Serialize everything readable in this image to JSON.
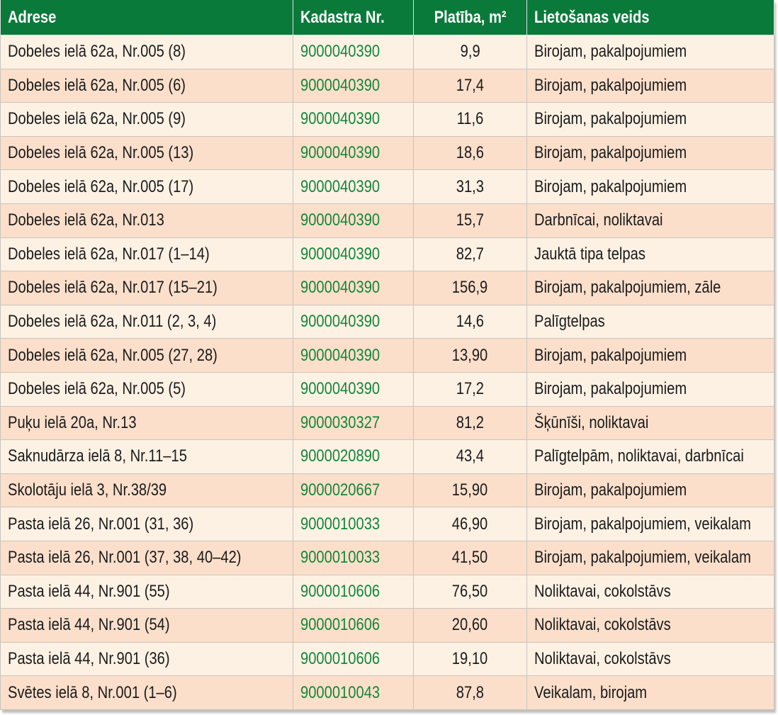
{
  "table": {
    "columns": [
      "Adrese",
      "Kadastra Nr.",
      "Platība, m²",
      "Lietošanas veids"
    ],
    "rows": [
      [
        "Dobeles ielā 62a, Nr.005 (8)",
        "9000040390",
        "9,9",
        "Birojam, pakalpojumiem"
      ],
      [
        "Dobeles ielā 62a, Nr.005 (6)",
        "9000040390",
        "17,4",
        "Birojam, pakalpojumiem"
      ],
      [
        "Dobeles ielā 62a, Nr.005 (9)",
        "9000040390",
        "11,6",
        "Birojam, pakalpojumiem"
      ],
      [
        "Dobeles ielā 62a, Nr.005 (13)",
        "9000040390",
        "18,6",
        "Birojam, pakalpojumiem"
      ],
      [
        "Dobeles ielā 62a, Nr.005 (17)",
        "9000040390",
        "31,3",
        "Birojam, pakalpojumiem"
      ],
      [
        "Dobeles ielā 62a, Nr.013",
        "9000040390",
        "15,7",
        "Darbnīcai, noliktavai"
      ],
      [
        "Dobeles ielā 62a, Nr.017 (1–14)",
        "9000040390",
        "82,7",
        "Jauktā tipa telpas"
      ],
      [
        "Dobeles ielā 62a, Nr.017 (15–21)",
        "9000040390",
        "156,9",
        "Birojam, pakalpojumiem, zāle"
      ],
      [
        "Dobeles ielā 62a, Nr.011 (2, 3, 4)",
        "9000040390",
        "14,6",
        "Palīgtelpas"
      ],
      [
        "Dobeles ielā 62a, Nr.005 (27, 28)",
        "9000040390",
        "13,90",
        "Birojam, pakalpojumiem"
      ],
      [
        "Dobeles ielā 62a, Nr.005 (5)",
        "9000040390",
        "17,2",
        "Birojam, pakalpojumiem"
      ],
      [
        "Puķu ielā 20a, Nr.13",
        "9000030327",
        "81,2",
        "Šķūnīši, noliktavai"
      ],
      [
        "Saknudārza ielā 8, Nr.11–15",
        "9000020890",
        "43,4",
        "Palīgtelpām, noliktavai, darbnīcai"
      ],
      [
        "Skolotāju ielā 3, Nr.38/39",
        "9000020667",
        "15,90",
        "Birojam, pakalpojumiem"
      ],
      [
        "Pasta ielā 26, Nr.001 (31, 36)",
        "9000010033",
        "46,90",
        "Birojam, pakalpojumiem, veikalam"
      ],
      [
        "Pasta ielā 26, Nr.001 (37, 38, 40–42)",
        "9000010033",
        "41,50",
        "Birojam, pakalpojumiem, veikalam"
      ],
      [
        "Pasta ielā 44, Nr.901 (55)",
        "9000010606",
        "76,50",
        "Noliktavai, cokolstāvs"
      ],
      [
        "Pasta ielā 44, Nr.901 (54)",
        "9000010606",
        "20,60",
        "Noliktavai, cokolstāvs"
      ],
      [
        "Pasta ielā 44, Nr.901 (36)",
        "9000010606",
        "19,10",
        "Noliktavai, cokolstāvs"
      ],
      [
        "Svētes ielā 8, Nr.001 (1–6)",
        "9000010043",
        "87,8",
        "Veikalam, birojam"
      ]
    ]
  }
}
